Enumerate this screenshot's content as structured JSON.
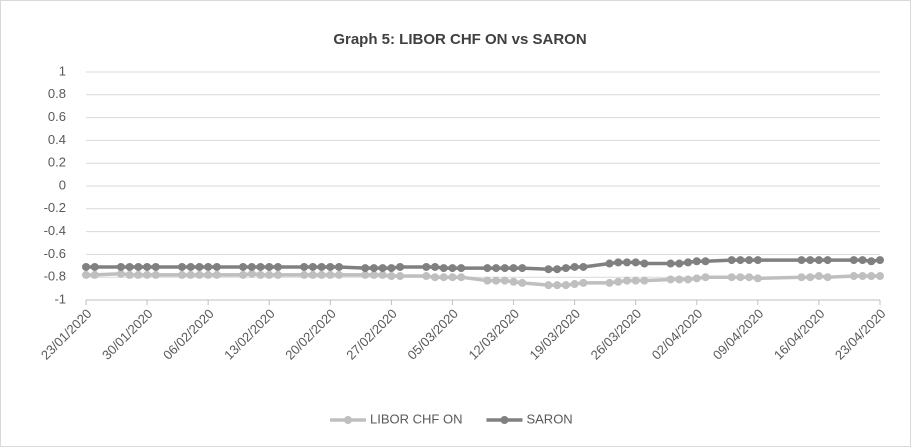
{
  "chart_data": {
    "type": "line",
    "title": "Graph 5: LIBOR CHF ON vs SARON",
    "x": [
      "23/01/2020",
      "24/01/2020",
      "27/01/2020",
      "28/01/2020",
      "29/01/2020",
      "30/01/2020",
      "31/01/2020",
      "03/02/2020",
      "04/02/2020",
      "05/02/2020",
      "06/02/2020",
      "07/02/2020",
      "10/02/2020",
      "11/02/2020",
      "12/02/2020",
      "13/02/2020",
      "14/02/2020",
      "17/02/2020",
      "18/02/2020",
      "19/02/2020",
      "20/02/2020",
      "21/02/2020",
      "24/02/2020",
      "25/02/2020",
      "26/02/2020",
      "27/02/2020",
      "28/02/2020",
      "02/03/2020",
      "03/03/2020",
      "04/03/2020",
      "05/03/2020",
      "06/03/2020",
      "09/03/2020",
      "10/03/2020",
      "11/03/2020",
      "12/03/2020",
      "13/03/2020",
      "16/03/2020",
      "17/03/2020",
      "18/03/2020",
      "19/03/2020",
      "20/03/2020",
      "23/03/2020",
      "24/03/2020",
      "25/03/2020",
      "26/03/2020",
      "27/03/2020",
      "30/03/2020",
      "31/03/2020",
      "01/04/2020",
      "02/04/2020",
      "03/04/2020",
      "06/04/2020",
      "07/04/2020",
      "08/04/2020",
      "09/04/2020",
      "14/04/2020",
      "15/04/2020",
      "16/04/2020",
      "17/04/2020",
      "20/04/2020",
      "21/04/2020",
      "22/04/2020",
      "23/04/2020"
    ],
    "series": [
      {
        "name": "LIBOR CHF ON",
        "color": "#bfbfbf",
        "values": [
          -0.78,
          -0.78,
          -0.77,
          -0.78,
          -0.78,
          -0.78,
          -0.78,
          -0.78,
          -0.78,
          -0.78,
          -0.78,
          -0.78,
          -0.78,
          -0.77,
          -0.78,
          -0.78,
          -0.78,
          -0.78,
          -0.78,
          -0.78,
          -0.78,
          -0.78,
          -0.78,
          -0.78,
          -0.78,
          -0.79,
          -0.79,
          -0.79,
          -0.8,
          -0.8,
          -0.8,
          -0.8,
          -0.83,
          -0.83,
          -0.83,
          -0.84,
          -0.85,
          -0.87,
          -0.87,
          -0.87,
          -0.86,
          -0.85,
          -0.85,
          -0.84,
          -0.83,
          -0.83,
          -0.83,
          -0.82,
          -0.82,
          -0.82,
          -0.81,
          -0.8,
          -0.8,
          -0.8,
          -0.8,
          -0.81,
          -0.8,
          -0.8,
          -0.79,
          -0.8,
          -0.79,
          -0.79,
          -0.79,
          -0.79
        ]
      },
      {
        "name": "SARON",
        "color": "#808080",
        "values": [
          -0.71,
          -0.71,
          -0.71,
          -0.71,
          -0.71,
          -0.71,
          -0.71,
          -0.71,
          -0.71,
          -0.71,
          -0.71,
          -0.71,
          -0.71,
          -0.71,
          -0.71,
          -0.71,
          -0.71,
          -0.71,
          -0.71,
          -0.71,
          -0.71,
          -0.71,
          -0.72,
          -0.72,
          -0.72,
          -0.72,
          -0.71,
          -0.71,
          -0.71,
          -0.72,
          -0.72,
          -0.72,
          -0.72,
          -0.72,
          -0.72,
          -0.72,
          -0.72,
          -0.73,
          -0.73,
          -0.72,
          -0.71,
          -0.71,
          -0.68,
          -0.67,
          -0.67,
          -0.67,
          -0.68,
          -0.68,
          -0.68,
          -0.67,
          -0.66,
          -0.66,
          -0.65,
          -0.65,
          -0.65,
          -0.65,
          -0.65,
          -0.65,
          -0.65,
          -0.65,
          -0.65,
          -0.65,
          -0.66,
          -0.65
        ]
      }
    ],
    "xlim": [
      "23/01/2020",
      "23/04/2020"
    ],
    "xticks": [
      "23/01/2020",
      "30/01/2020",
      "06/02/2020",
      "13/02/2020",
      "20/02/2020",
      "27/02/2020",
      "05/03/2020",
      "12/03/2020",
      "19/03/2020",
      "26/03/2020",
      "02/04/2020",
      "09/04/2020",
      "16/04/2020",
      "23/04/2020"
    ],
    "ylim": [
      -1,
      1
    ],
    "yticks": [
      1,
      0.8,
      0.6,
      0.4,
      0.2,
      0,
      -0.2,
      -0.4,
      -0.6,
      -0.8,
      -1
    ],
    "grid": true,
    "legend": "bottom"
  }
}
